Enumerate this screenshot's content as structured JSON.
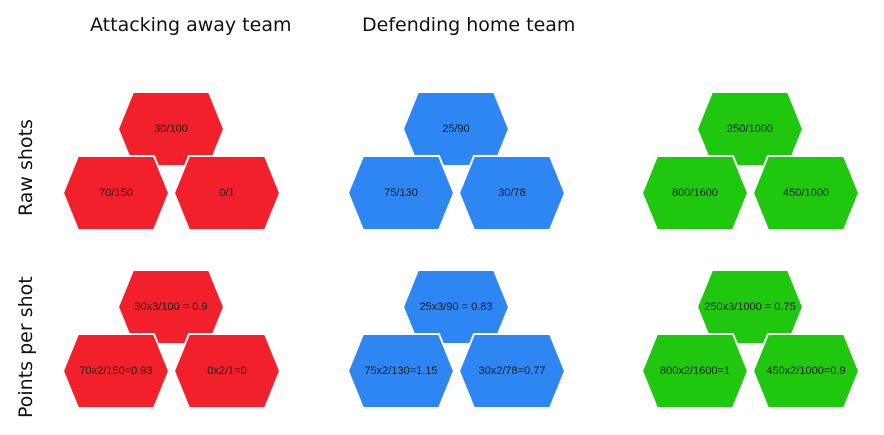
{
  "columns": {
    "away": "Attacking away team",
    "home": "Defending home team"
  },
  "rows": {
    "raw": "Raw shots",
    "pps": "Points per shot"
  },
  "colors": {
    "red": "#f1202b",
    "blue": "#2d86f2",
    "green": "#1fc70e",
    "edge": "#ffffff"
  },
  "hexes": {
    "raw": {
      "red": {
        "top": "30/100",
        "left": "70/150",
        "right": "0/1"
      },
      "blue": {
        "top": "25/90",
        "left": "75/130",
        "right": "30/78"
      },
      "green": {
        "top": "250/1000",
        "left": "800/1600",
        "right": "450/1000"
      }
    },
    "pps": {
      "red": {
        "top": "30x3/100 = 0.9",
        "left": "70x2/150=0.93",
        "right": "0x2/1=0"
      },
      "blue": {
        "top": "25x3/90 = 0.83",
        "left": "75x2/130=1.15",
        "right": "30x2/78=0.77"
      },
      "green": {
        "top": "250x3/1000 = 0.75",
        "left": "800x2/1600=1",
        "right": "450x2/1000=0.9"
      }
    }
  }
}
